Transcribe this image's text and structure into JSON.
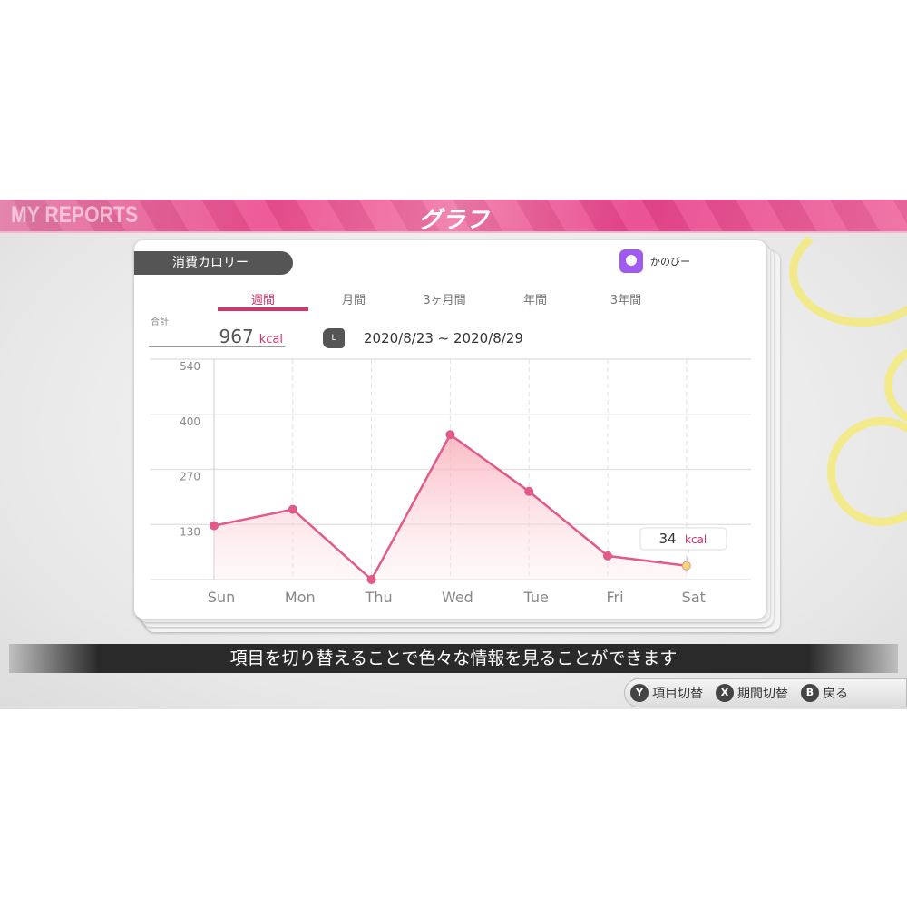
{
  "header": {
    "brand": "MY REPORTS",
    "title": "グラフ"
  },
  "card": {
    "category": "消費カロリー",
    "user_name": "かのびー",
    "tabs": [
      {
        "label": "週間",
        "active": true
      },
      {
        "label": "月間"
      },
      {
        "label": "3ヶ月間"
      },
      {
        "label": "年間"
      },
      {
        "label": "3年間"
      }
    ],
    "total_label": "合計",
    "total_value": "967",
    "total_unit": "kcal",
    "l_button": "L",
    "date_range": "2020/8/23 ~ 2020/8/29"
  },
  "chart_data": {
    "type": "area",
    "categories": [
      "Sun",
      "Mon",
      "Thu",
      "Wed",
      "Tue",
      "Fri",
      "Sat"
    ],
    "values": [
      132,
      172,
      0,
      355,
      216,
      58,
      34
    ],
    "y_ticks": [
      130,
      270,
      400,
      540
    ],
    "ylim": [
      0,
      540
    ],
    "grid": true,
    "line_color": "#e05a8a",
    "highlight": {
      "category": "Sat",
      "value": "34",
      "unit": "kcal",
      "color": "#f7d774"
    }
  },
  "caption": "項目を切り替えることで色々な情報を見ることができます",
  "hints": [
    {
      "button": "Y",
      "label": "項目切替"
    },
    {
      "button": "X",
      "label": "期間切替"
    },
    {
      "button": "B",
      "label": "戻る"
    }
  ]
}
